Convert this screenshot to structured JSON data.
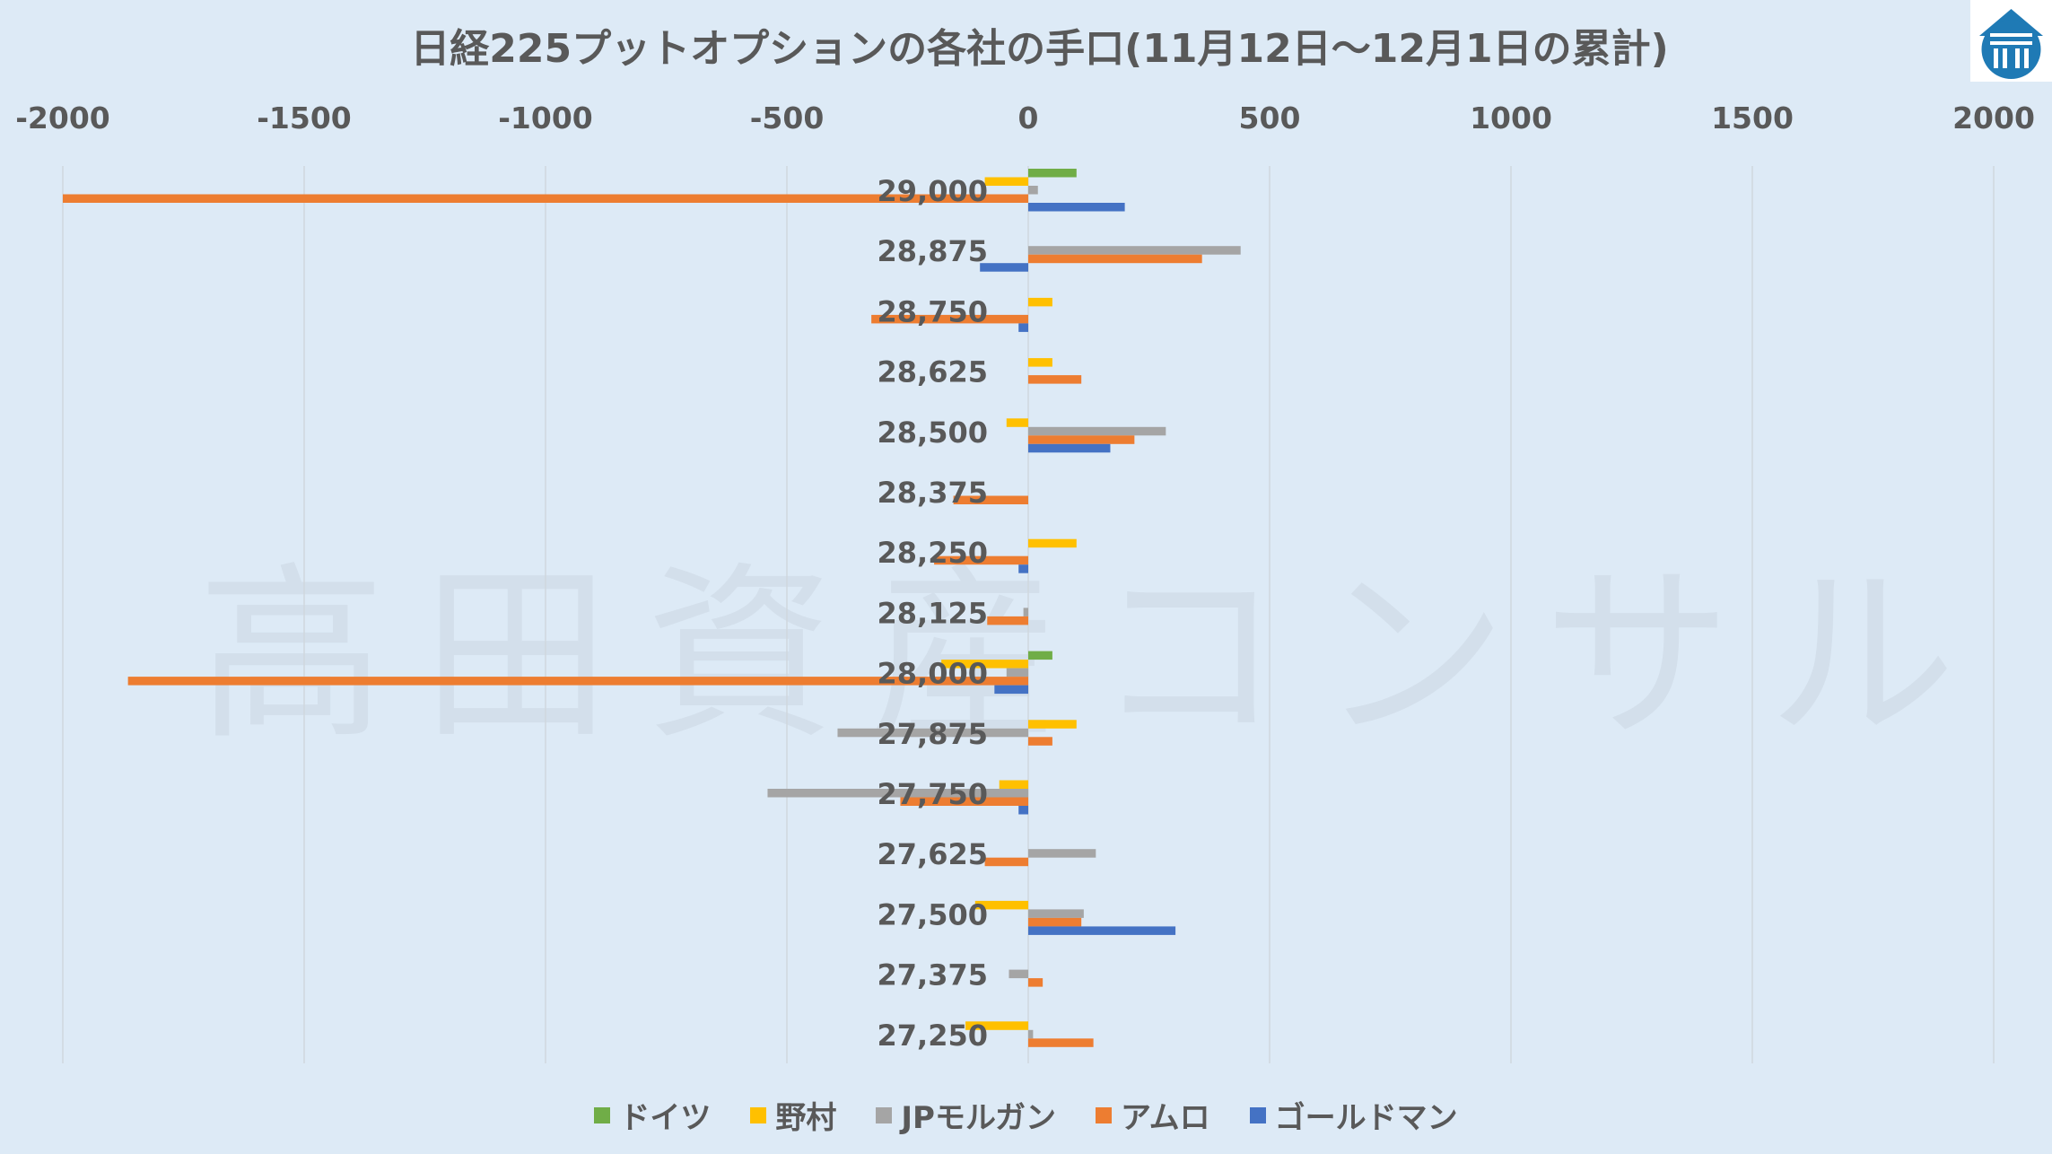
{
  "chart_data": {
    "type": "bar",
    "orientation": "horizontal",
    "title": "日経225プットオプションの各社の手口(11月12日～12月1日の累計)",
    "xlim": [
      -2000,
      2000
    ],
    "xticks": [
      "-2000",
      "-1500",
      "-1000",
      "-500",
      "0",
      "500",
      "1000",
      "1500",
      "2000"
    ],
    "grid": true,
    "legend_position": "bottom",
    "categories": [
      "29,000",
      "28,875",
      "28,750",
      "28,625",
      "28,500",
      "28,375",
      "28,250",
      "28,125",
      "28,000",
      "27,875",
      "27,750",
      "27,625",
      "27,500",
      "27,375",
      "27,250"
    ],
    "series": [
      {
        "name": "ドイツ",
        "color": "#70ad47",
        "values": [
          100,
          0,
          0,
          0,
          0,
          0,
          0,
          0,
          50,
          0,
          0,
          0,
          0,
          0,
          0
        ]
      },
      {
        "name": "野村",
        "color": "#ffc000",
        "values": [
          -90,
          0,
          50,
          50,
          -45,
          0,
          100,
          0,
          -180,
          100,
          -60,
          0,
          -110,
          0,
          -130
        ]
      },
      {
        "name": "JPモルガン",
        "color": "#a5a5a5",
        "values": [
          20,
          440,
          0,
          0,
          285,
          0,
          0,
          -10,
          -45,
          -395,
          -540,
          140,
          115,
          -40,
          10
        ]
      },
      {
        "name": "アムロ",
        "color": "#ed7d31",
        "values": [
          -2000,
          360,
          -325,
          110,
          220,
          -155,
          -195,
          -85,
          -1865,
          50,
          -265,
          -90,
          110,
          30,
          135
        ]
      },
      {
        "name": "ゴールドマン",
        "color": "#4472c4",
        "values": [
          200,
          -100,
          -20,
          0,
          170,
          0,
          -20,
          0,
          -70,
          0,
          -20,
          0,
          305,
          0,
          0
        ]
      }
    ]
  },
  "watermark": "高田資産コンサル",
  "logo": {
    "name": "logo-icon",
    "bg": "#1f7ab5"
  }
}
